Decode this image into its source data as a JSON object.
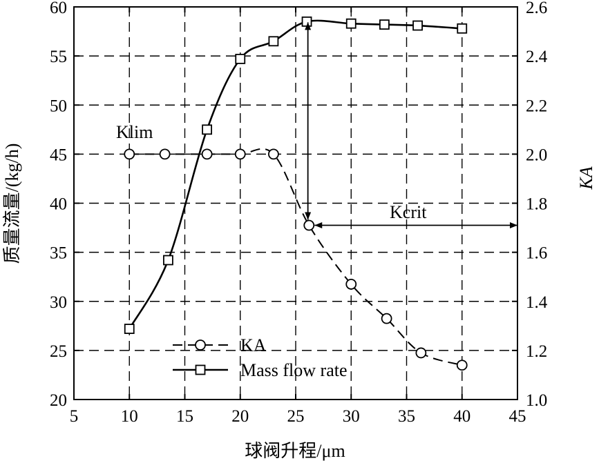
{
  "chart_data": {
    "type": "line",
    "title": "",
    "xlabel": "球阀升程/μm",
    "ylabel_left": "质量流量/(kg/h)",
    "ylabel_right": "KA",
    "xlim": [
      5,
      45
    ],
    "xticks": [
      5,
      10,
      15,
      20,
      25,
      30,
      35,
      40,
      45
    ],
    "ylim_left": [
      20,
      60
    ],
    "yticks_left": [
      20,
      25,
      30,
      35,
      40,
      45,
      50,
      55,
      60
    ],
    "ylim_right": [
      1.0,
      2.6
    ],
    "yticks_right": [
      "1.0",
      "1.2",
      "1.4",
      "1.6",
      "1.8",
      "2.0",
      "2.2",
      "2.4",
      "2.6"
    ],
    "grid": true,
    "legend_position": "lower-left",
    "series": [
      {
        "name": "KA",
        "axis": "right",
        "marker": "circle",
        "line_style": "dashed",
        "x": [
          10,
          13.2,
          17,
          20,
          23,
          26.2,
          30,
          33.2,
          36.3,
          40
        ],
        "y": [
          2.0,
          2.0,
          2.0,
          2.0,
          2.0,
          1.71,
          1.47,
          1.33,
          1.19,
          1.14
        ]
      },
      {
        "name": "Mass flow rate",
        "axis": "left",
        "marker": "square",
        "line_style": "solid",
        "x": [
          10,
          13.5,
          17,
          20,
          23,
          26,
          30,
          33,
          36,
          40
        ],
        "y": [
          27.2,
          34.2,
          47.5,
          54.7,
          56.5,
          58.5,
          58.3,
          58.2,
          58.1,
          57.8
        ]
      }
    ],
    "annotations": [
      {
        "text": "Klim"
      },
      {
        "text": "Kcrit"
      }
    ]
  }
}
